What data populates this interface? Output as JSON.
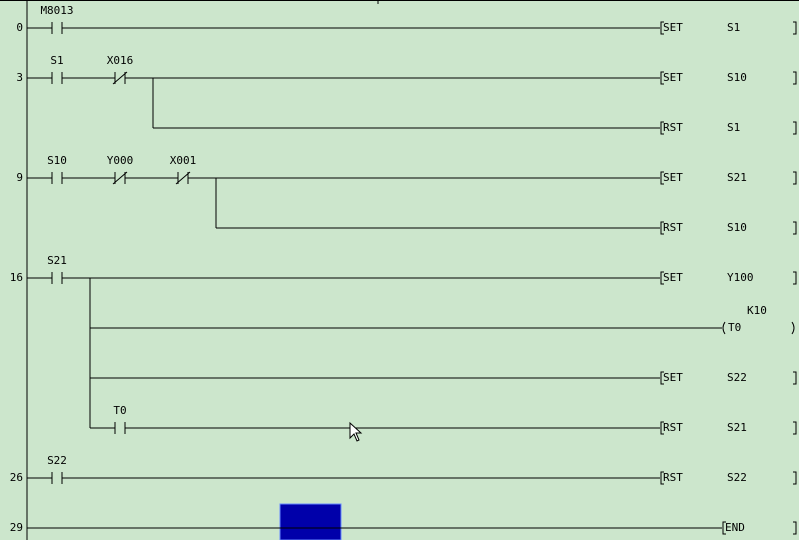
{
  "ladder": {
    "rungs": [
      {
        "step": 0,
        "contacts": [
          {
            "label": "M8013",
            "kind": "NO"
          }
        ],
        "outputs": [
          {
            "instr": "SET",
            "operand": "S1"
          }
        ]
      },
      {
        "step": 3,
        "contacts": [
          {
            "label": "S1",
            "kind": "NO"
          },
          {
            "label": "X016",
            "kind": "NC"
          }
        ],
        "outputs": [
          {
            "instr": "SET",
            "operand": "S10"
          },
          {
            "instr": "RST",
            "operand": "S1"
          }
        ]
      },
      {
        "step": 9,
        "contacts": [
          {
            "label": "S10",
            "kind": "NO"
          },
          {
            "label": "Y000",
            "kind": "NC"
          },
          {
            "label": "X001",
            "kind": "NC"
          }
        ],
        "outputs": [
          {
            "instr": "SET",
            "operand": "S21"
          },
          {
            "instr": "RST",
            "operand": "S10"
          }
        ]
      },
      {
        "step": 16,
        "contacts": [
          {
            "label": "S21",
            "kind": "NO"
          }
        ],
        "outputs": [
          {
            "instr": "SET",
            "operand": "Y100"
          },
          {
            "coil": "T0",
            "param": "K10"
          },
          {
            "instr": "SET",
            "operand": "S22"
          },
          {
            "contacts": [
              {
                "label": "T0",
                "kind": "NO"
              }
            ],
            "instr": "RST",
            "operand": "S21"
          }
        ]
      },
      {
        "step": 26,
        "contacts": [
          {
            "label": "S22",
            "kind": "NO"
          }
        ],
        "outputs": [
          {
            "instr": "RST",
            "operand": "S22"
          }
        ]
      },
      {
        "step": 29,
        "contacts": [],
        "outputs": [
          {
            "instr": "END"
          }
        ]
      }
    ]
  }
}
